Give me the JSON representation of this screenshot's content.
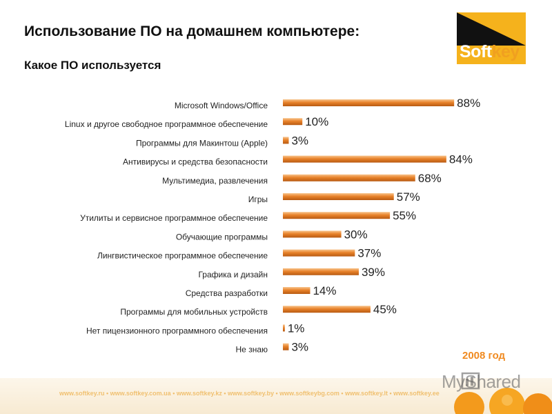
{
  "title": "Использование ПО на домашнем компьютере:",
  "subtitle": "Какое ПО используется",
  "logo": {
    "text_main": "Soft",
    "text_accent": "key"
  },
  "year_label": "2008 год",
  "footer_text": "www.softkey.ru • www.softkey.com.ua • www.softkey.kz • www.softkey.by • www.softkeybg.com • www.softkey.lt • www.softkey.ee",
  "watermark": "MyShared",
  "colors": {
    "bar": "#e8822a",
    "bar_light": "#f8c48c",
    "bar_dark": "#b85a12",
    "accent": "#f08a20"
  },
  "chart_data": {
    "type": "bar",
    "orientation": "horizontal",
    "title": "Какое ПО используется",
    "xlim": [
      0,
      100
    ],
    "grid": false,
    "categories": [
      "Microsoft Windows/Office",
      "Linux и другое свободное программное обеспечение",
      "Программы для Макинтош (Apple)",
      "Антивирусы и средства безопасности",
      "Мультимедиа, развлечения",
      "Игры",
      "Утилиты и сервисное программное обеспечение",
      "Обучающие программы",
      "Лингвистическое программное обеспечение",
      "Графика и дизайн",
      "Средства разработки",
      "Программы для мобильных устройств",
      "Нет пицензионного программного обеспечения",
      "Не знаю"
    ],
    "values": [
      88,
      10,
      3,
      84,
      68,
      57,
      55,
      30,
      37,
      39,
      14,
      45,
      1,
      3
    ],
    "value_labels": [
      "88%",
      "10%",
      "3%",
      "84%",
      "68%",
      "57%",
      "55%",
      "30%",
      "37%",
      "39%",
      "14%",
      "45%",
      "1%",
      "3%"
    ]
  }
}
